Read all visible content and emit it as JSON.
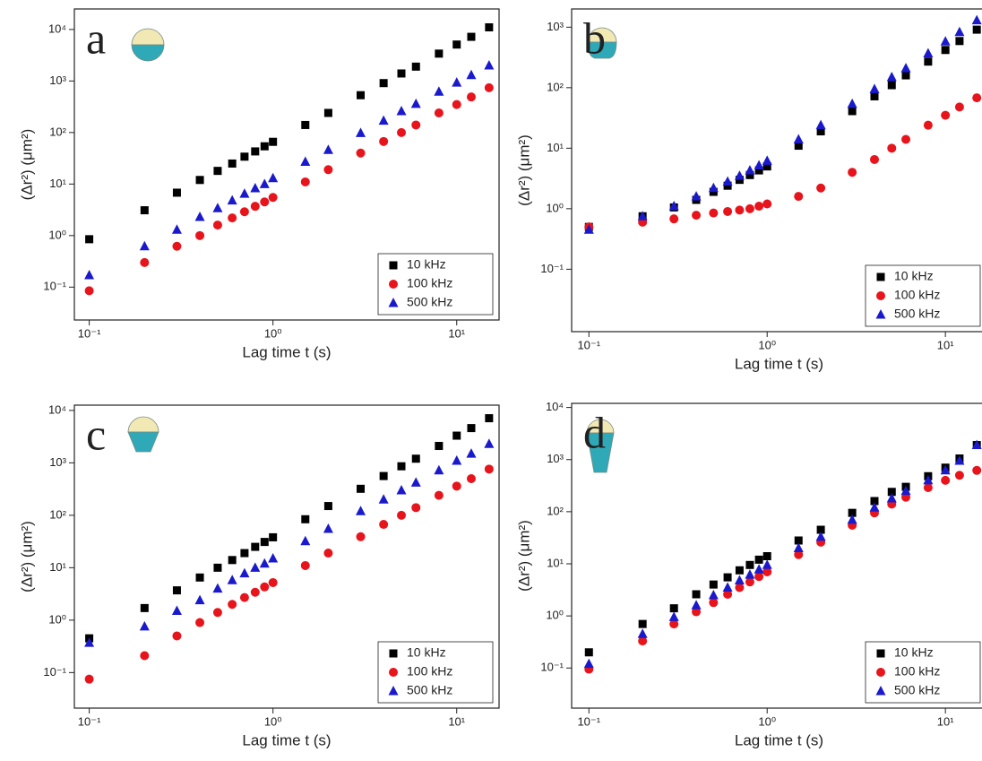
{
  "chart_data": [
    {
      "type": "scatter",
      "panel": "a",
      "xlabel": "Lag time t (s)",
      "ylabel": "(Δr²) (μm²)",
      "log_x": true,
      "log_y": true,
      "legend": "lower right",
      "x": [
        0.1,
        0.2,
        0.3,
        0.4,
        0.5,
        0.6,
        0.7,
        0.8,
        0.9,
        1,
        1.5,
        2,
        3,
        4,
        5,
        6,
        8,
        10,
        12,
        15
      ],
      "series": [
        {
          "name": "10 kHz",
          "color": "#000000",
          "marker": "square",
          "values": [
            0.85,
            3.1,
            6.8,
            12,
            18,
            25,
            34,
            43,
            54,
            66,
            140,
            240,
            530,
            910,
            1400,
            1900,
            3400,
            5100,
            7200,
            11000
          ]
        },
        {
          "name": "100 kHz",
          "color": "#e8141c",
          "marker": "circle",
          "values": [
            0.085,
            0.3,
            0.62,
            1.0,
            1.6,
            2.2,
            2.9,
            3.7,
            4.5,
            5.5,
            11,
            19,
            40,
            67,
            100,
            140,
            240,
            350,
            490,
            740
          ]
        },
        {
          "name": "500 kHz",
          "color": "#1a1acc",
          "marker": "triangle",
          "values": [
            0.17,
            0.62,
            1.3,
            2.3,
            3.4,
            4.8,
            6.5,
            8.3,
            10,
            13,
            27,
            46,
            98,
            170,
            260,
            360,
            620,
            930,
            1300,
            2000
          ]
        }
      ],
      "xlim": [
        0.083,
        17
      ],
      "ylim": [
        0.023,
        25000
      ],
      "xticks": [
        {
          "value": 0.1,
          "label": "10⁻¹"
        },
        {
          "value": 1,
          "label": "10⁰"
        },
        {
          "value": 10,
          "label": "10¹"
        }
      ],
      "yticks": [
        {
          "value": 0.1,
          "label": "10⁻¹"
        },
        {
          "value": 1,
          "label": "10⁰"
        },
        {
          "value": 10,
          "label": "10¹"
        },
        {
          "value": 100,
          "label": "10²"
        },
        {
          "value": 1000,
          "label": "10³"
        },
        {
          "value": 10000,
          "label": "10⁴"
        }
      ]
    },
    {
      "type": "scatter",
      "panel": "b",
      "xlabel": "Lag time t (s)",
      "ylabel": "(Δr²) (μm²)",
      "log_x": true,
      "log_y": true,
      "legend": "lower right",
      "x": [
        0.1,
        0.2,
        0.3,
        0.4,
        0.5,
        0.6,
        0.7,
        0.8,
        0.9,
        1,
        1.5,
        2,
        3,
        4,
        5,
        6,
        8,
        10,
        12,
        15
      ],
      "series": [
        {
          "name": "10 kHz",
          "color": "#000000",
          "marker": "square",
          "values": [
            0.5,
            0.75,
            1.05,
            1.4,
            1.9,
            2.4,
            3.0,
            3.6,
            4.3,
            5.0,
            11,
            19,
            41,
            72,
            110,
            160,
            270,
            420,
            590,
            910
          ]
        },
        {
          "name": "100 kHz",
          "color": "#e8141c",
          "marker": "circle",
          "values": [
            0.5,
            0.6,
            0.68,
            0.78,
            0.85,
            0.9,
            0.95,
            1.0,
            1.1,
            1.2,
            1.6,
            2.2,
            4,
            6.5,
            10,
            14,
            24,
            35,
            48,
            68
          ]
        },
        {
          "name": "500 kHz",
          "color": "#1a1acc",
          "marker": "triangle",
          "values": [
            0.45,
            0.75,
            1.1,
            1.6,
            2.2,
            2.8,
            3.5,
            4.3,
            5.2,
            6.2,
            14,
            24,
            54,
            95,
            150,
            210,
            370,
            580,
            830,
            1300
          ]
        }
      ],
      "xlim": [
        0.08,
        17
      ],
      "ylim": [
        0.0093,
        2000
      ],
      "xticks": [
        {
          "value": 0.1,
          "label": "10⁻¹"
        },
        {
          "value": 1,
          "label": "10⁰"
        },
        {
          "value": 10,
          "label": "10¹"
        }
      ],
      "yticks": [
        {
          "value": 0.1,
          "label": "10⁻¹"
        },
        {
          "value": 1,
          "label": "10⁰"
        },
        {
          "value": 10,
          "label": "10¹"
        },
        {
          "value": 100,
          "label": "10²"
        },
        {
          "value": 1000,
          "label": "10³"
        }
      ]
    },
    {
      "type": "scatter",
      "panel": "c",
      "xlabel": "Lag time t (s)",
      "ylabel": "(Δr²) (μm²)",
      "log_x": true,
      "log_y": true,
      "legend": "lower right",
      "x": [
        0.1,
        0.2,
        0.3,
        0.4,
        0.5,
        0.6,
        0.7,
        0.8,
        0.9,
        1,
        1.5,
        2,
        3,
        4,
        5,
        6,
        8,
        10,
        12,
        15
      ],
      "series": [
        {
          "name": "10 kHz",
          "color": "#000000",
          "marker": "square",
          "values": [
            0.45,
            1.7,
            3.7,
            6.5,
            10,
            14,
            19,
            25,
            31,
            38,
            84,
            150,
            320,
            560,
            860,
            1200,
            2100,
            3300,
            4600,
            7100
          ]
        },
        {
          "name": "100 kHz",
          "color": "#e8141c",
          "marker": "circle",
          "values": [
            0.075,
            0.21,
            0.5,
            0.9,
            1.4,
            2.0,
            2.7,
            3.4,
            4.3,
            5.2,
            11,
            19,
            39,
            67,
            100,
            140,
            240,
            360,
            500,
            760
          ]
        },
        {
          "name": "500 kHz",
          "color": "#1a1acc",
          "marker": "triangle",
          "values": [
            0.37,
            0.76,
            1.5,
            2.4,
            4.0,
            5.8,
            7.8,
            10,
            12,
            15,
            32,
            55,
            120,
            200,
            300,
            420,
            720,
            1100,
            1500,
            2300
          ]
        }
      ],
      "xlim": [
        0.083,
        17
      ],
      "ylim": [
        0.021,
        12600
      ],
      "xticks": [
        {
          "value": 0.1,
          "label": "10⁻¹"
        },
        {
          "value": 1,
          "label": "10⁰"
        },
        {
          "value": 10,
          "label": "10¹"
        }
      ],
      "yticks": [
        {
          "value": 0.1,
          "label": "10⁻¹"
        },
        {
          "value": 1,
          "label": "10⁰"
        },
        {
          "value": 10,
          "label": "10¹"
        },
        {
          "value": 100,
          "label": "10²"
        },
        {
          "value": 1000,
          "label": "10³"
        },
        {
          "value": 10000,
          "label": "10⁴"
        }
      ]
    },
    {
      "type": "scatter",
      "panel": "d",
      "xlabel": "Lag time t (s)",
      "ylabel": "(Δr²) (μm²)",
      "log_x": true,
      "log_y": true,
      "legend": "lower right",
      "x": [
        0.1,
        0.2,
        0.3,
        0.4,
        0.5,
        0.6,
        0.7,
        0.8,
        0.9,
        1,
        1.5,
        2,
        3,
        4,
        5,
        6,
        8,
        10,
        12,
        15
      ],
      "series": [
        {
          "name": "10 kHz",
          "color": "#000000",
          "marker": "square",
          "values": [
            0.2,
            0.7,
            1.4,
            2.6,
            4,
            5.5,
            7.5,
            9.5,
            12,
            14,
            28,
            45,
            95,
            160,
            240,
            300,
            480,
            700,
            1050,
            1900
          ]
        },
        {
          "name": "100 kHz",
          "color": "#e8141c",
          "marker": "circle",
          "values": [
            0.095,
            0.33,
            0.7,
            1.2,
            1.8,
            2.6,
            3.5,
            4.5,
            5.7,
            7,
            15,
            26,
            55,
            95,
            140,
            190,
            290,
            400,
            500,
            620
          ]
        },
        {
          "name": "500 kHz",
          "color": "#1a1acc",
          "marker": "triangle",
          "values": [
            0.12,
            0.45,
            0.95,
            1.6,
            2.5,
            3.5,
            4.8,
            6.2,
            7.8,
            9.5,
            20,
            33,
            70,
            120,
            180,
            250,
            400,
            620,
            950,
            1900
          ]
        }
      ],
      "xlim": [
        0.08,
        17
      ],
      "ylim": [
        0.017,
        12000
      ],
      "xticks": [
        {
          "value": 0.1,
          "label": "10⁻¹"
        },
        {
          "value": 1,
          "label": "10⁰"
        },
        {
          "value": 10,
          "label": "10¹"
        }
      ],
      "yticks": [
        {
          "value": 0.1,
          "label": "10⁻¹"
        },
        {
          "value": 1,
          "label": "10⁰"
        },
        {
          "value": 10,
          "label": "10¹"
        },
        {
          "value": 100,
          "label": "10²"
        },
        {
          "value": 1000,
          "label": "10³"
        },
        {
          "value": 10000,
          "label": "10⁴"
        }
      ]
    }
  ]
}
